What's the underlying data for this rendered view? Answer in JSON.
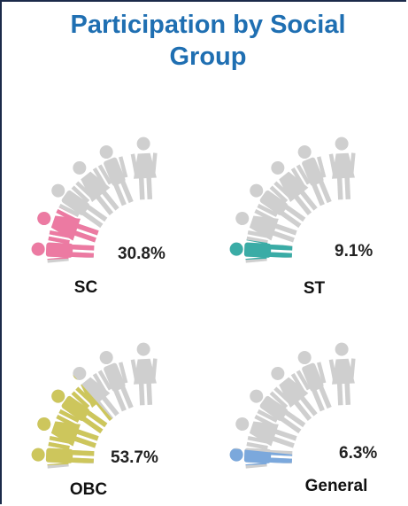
{
  "chart_data": {
    "type": "gauge",
    "title": "Participation by Social Group",
    "categories": [
      "SC",
      "ST",
      "OBC",
      "General"
    ],
    "values": [
      30.8,
      9.1,
      53.7,
      6.3
    ],
    "value_labels": [
      "30.8%",
      "9.1%",
      "53.7%",
      "6.3%"
    ],
    "colors": [
      "#ec7aa2",
      "#3aaca6",
      "#cdc65c",
      "#7ba8dc"
    ],
    "ylim": [
      0,
      100
    ]
  }
}
